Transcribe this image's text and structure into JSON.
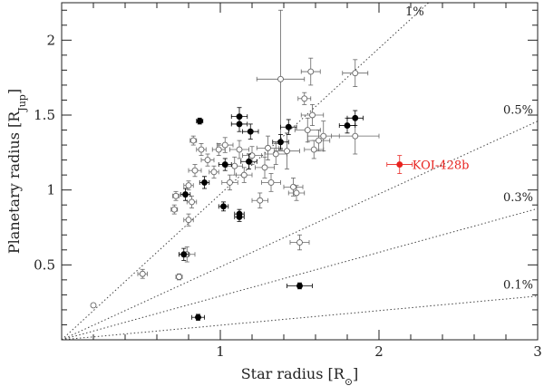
{
  "chart_data": {
    "type": "scatter",
    "xlabel": "Star radius [R",
    "xlabel_sub": "⊙",
    "xlabel_end": "]",
    "ylabel": "Planetary radius [R",
    "ylabel_sub": "Jup",
    "ylabel_end": "]",
    "xlim": [
      0,
      3
    ],
    "ylim": [
      0,
      2.25
    ],
    "x_ticks": [
      1,
      2,
      3
    ],
    "y_ticks": [
      0.5,
      1,
      1.5,
      2
    ],
    "x_tick_labels": [
      "1",
      "2",
      "3"
    ],
    "y_tick_labels": [
      "0.5",
      "1",
      "1.5",
      "2"
    ],
    "x_minor_step": 0.2,
    "y_minor_step": 0.1,
    "reference_lines": [
      {
        "label": "1%",
        "ratio_percent": 1
      },
      {
        "label": "0.5%",
        "ratio_percent": 0.5
      },
      {
        "label": "0.3%",
        "ratio_percent": 0.3
      },
      {
        "label": "0.1%",
        "ratio_percent": 0.1
      }
    ],
    "highlight": {
      "label": "KOI-428b",
      "x": 2.13,
      "y": 1.17,
      "xerr": 0.08,
      "yerr": 0.06,
      "color": "#e8231f"
    },
    "filled_points": [
      {
        "x": 0.87,
        "y": 1.46,
        "xerr": 0.02,
        "yerr": 0.02
      },
      {
        "x": 1.12,
        "y": 1.49,
        "xerr": 0.05,
        "yerr": 0.06
      },
      {
        "x": 1.12,
        "y": 1.44,
        "xerr": 0.05,
        "yerr": 0.05
      },
      {
        "x": 1.19,
        "y": 1.39,
        "xerr": 0.05,
        "yerr": 0.05
      },
      {
        "x": 1.43,
        "y": 1.42,
        "xerr": 0.05,
        "yerr": 0.05
      },
      {
        "x": 1.38,
        "y": 1.32,
        "xerr": 0.05,
        "yerr": 0.05
      },
      {
        "x": 1.8,
        "y": 1.43,
        "xerr": 0.05,
        "yerr": 0.05
      },
      {
        "x": 1.85,
        "y": 1.48,
        "xerr": 0.05,
        "yerr": 0.05
      },
      {
        "x": 1.03,
        "y": 1.17,
        "xerr": 0.04,
        "yerr": 0.04
      },
      {
        "x": 1.18,
        "y": 1.19,
        "xerr": 0.05,
        "yerr": 0.05
      },
      {
        "x": 0.9,
        "y": 1.05,
        "xerr": 0.03,
        "yerr": 0.04
      },
      {
        "x": 0.78,
        "y": 0.97,
        "xerr": 0.03,
        "yerr": 0.04
      },
      {
        "x": 1.02,
        "y": 0.89,
        "xerr": 0.03,
        "yerr": 0.03
      },
      {
        "x": 1.12,
        "y": 0.84,
        "xerr": 0.03,
        "yerr": 0.03
      },
      {
        "x": 1.12,
        "y": 0.82,
        "xerr": 0.03,
        "yerr": 0.03
      },
      {
        "x": 0.77,
        "y": 0.57,
        "xerr": 0.03,
        "yerr": 0.04
      },
      {
        "x": 1.5,
        "y": 0.36,
        "xerr": 0.08,
        "yerr": 0.02
      },
      {
        "x": 0.86,
        "y": 0.15,
        "xerr": 0.04,
        "yerr": 0.02
      }
    ],
    "open_points": [
      {
        "x": 0.2,
        "y": 0.23,
        "xerr": 0.01,
        "yerr": 0.01
      },
      {
        "x": 0.51,
        "y": 0.44,
        "xerr": 0.03,
        "yerr": 0.03
      },
      {
        "x": 0.74,
        "y": 0.42,
        "xerr": 0.02,
        "yerr": 0.02
      },
      {
        "x": 0.79,
        "y": 0.57,
        "xerr": 0.05,
        "yerr": 0.05
      },
      {
        "x": 0.71,
        "y": 0.87,
        "xerr": 0.02,
        "yerr": 0.03
      },
      {
        "x": 0.72,
        "y": 0.96,
        "xerr": 0.02,
        "yerr": 0.03
      },
      {
        "x": 0.8,
        "y": 0.8,
        "xerr": 0.03,
        "yerr": 0.04
      },
      {
        "x": 0.82,
        "y": 0.92,
        "xerr": 0.03,
        "yerr": 0.04
      },
      {
        "x": 0.8,
        "y": 1.03,
        "xerr": 0.03,
        "yerr": 0.03
      },
      {
        "x": 0.84,
        "y": 1.13,
        "xerr": 0.04,
        "yerr": 0.04
      },
      {
        "x": 0.83,
        "y": 1.33,
        "xerr": 0.02,
        "yerr": 0.03
      },
      {
        "x": 0.88,
        "y": 1.27,
        "xerr": 0.03,
        "yerr": 0.04
      },
      {
        "x": 0.92,
        "y": 1.2,
        "xerr": 0.04,
        "yerr": 0.04
      },
      {
        "x": 0.96,
        "y": 1.12,
        "xerr": 0.03,
        "yerr": 0.04
      },
      {
        "x": 0.99,
        "y": 1.27,
        "xerr": 0.04,
        "yerr": 0.04
      },
      {
        "x": 1.03,
        "y": 1.3,
        "xerr": 0.05,
        "yerr": 0.05
      },
      {
        "x": 1.06,
        "y": 1.05,
        "xerr": 0.05,
        "yerr": 0.05
      },
      {
        "x": 1.09,
        "y": 1.16,
        "xerr": 0.05,
        "yerr": 0.06
      },
      {
        "x": 1.12,
        "y": 1.27,
        "xerr": 0.06,
        "yerr": 0.06
      },
      {
        "x": 1.15,
        "y": 1.1,
        "xerr": 0.05,
        "yerr": 0.05
      },
      {
        "x": 1.2,
        "y": 1.23,
        "xerr": 0.06,
        "yerr": 0.06
      },
      {
        "x": 1.25,
        "y": 0.93,
        "xerr": 0.05,
        "yerr": 0.05
      },
      {
        "x": 1.28,
        "y": 1.15,
        "xerr": 0.06,
        "yerr": 0.07
      },
      {
        "x": 1.3,
        "y": 1.28,
        "xerr": 0.07,
        "yerr": 0.08
      },
      {
        "x": 1.32,
        "y": 1.05,
        "xerr": 0.06,
        "yerr": 0.06
      },
      {
        "x": 1.35,
        "y": 1.24,
        "xerr": 0.07,
        "yerr": 0.07
      },
      {
        "x": 1.38,
        "y": 1.74,
        "xerr": 0.15,
        "yerr": 0.46
      },
      {
        "x": 1.42,
        "y": 1.26,
        "xerr": 0.08,
        "yerr": 0.12
      },
      {
        "x": 1.46,
        "y": 1.02,
        "xerr": 0.06,
        "yerr": 0.06
      },
      {
        "x": 1.48,
        "y": 0.98,
        "xerr": 0.05,
        "yerr": 0.05
      },
      {
        "x": 1.5,
        "y": 0.65,
        "xerr": 0.06,
        "yerr": 0.05
      },
      {
        "x": 1.53,
        "y": 1.61,
        "xerr": 0.04,
        "yerr": 0.04
      },
      {
        "x": 1.55,
        "y": 1.4,
        "xerr": 0.08,
        "yerr": 0.08
      },
      {
        "x": 1.57,
        "y": 1.79,
        "xerr": 0.06,
        "yerr": 0.09
      },
      {
        "x": 1.58,
        "y": 1.5,
        "xerr": 0.07,
        "yerr": 0.07
      },
      {
        "x": 1.59,
        "y": 1.27,
        "xerr": 0.06,
        "yerr": 0.06
      },
      {
        "x": 1.62,
        "y": 1.33,
        "xerr": 0.07,
        "yerr": 0.07
      },
      {
        "x": 1.65,
        "y": 1.36,
        "xerr": 0.1,
        "yerr": 0.1
      },
      {
        "x": 1.85,
        "y": 1.78,
        "xerr": 0.08,
        "yerr": 0.09
      },
      {
        "x": 1.85,
        "y": 1.36,
        "xerr": 0.15,
        "yerr": 0.12
      }
    ]
  }
}
